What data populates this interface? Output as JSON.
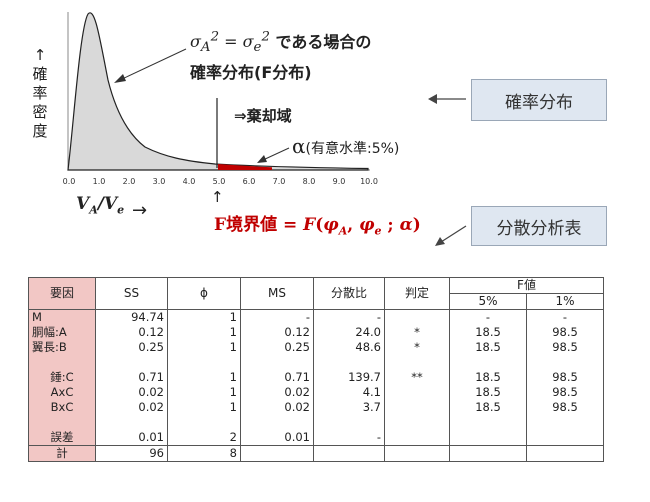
{
  "chart": {
    "y_label_chars": [
      "↑",
      "確",
      "率",
      "密",
      "度"
    ],
    "x_ticks": [
      "0.0",
      "1.0",
      "2.0",
      "3.0",
      "4.0",
      "5.0",
      "6.0",
      "7.0",
      "8.0",
      "9.0",
      "10.0"
    ],
    "x_axis_var": "V_A/V_e",
    "x_arrow": "→",
    "equation_line1_rest": "である場合の",
    "equation_line2": "確率分布(F分布)",
    "rejection_label": "⇒棄却域",
    "alpha_symbol": "α",
    "alpha_text": "(有意水準:5%)",
    "boundary_arrow": "↑",
    "f_boundary_prefix": "F境界値",
    "colors": {
      "curve_fill": "#d9d9d9",
      "curve_stroke": "#222222",
      "rejection_fill": "#c00000",
      "label_box_bg": "#dfe7f1",
      "factor_cell_bg": "#f2c7c5"
    }
  },
  "labels": {
    "probability": "確率分布",
    "anova": "分散分析表"
  },
  "table": {
    "headers": {
      "factor": "要因",
      "ss": "SS",
      "phi": "ϕ",
      "ms": "MS",
      "ratio": "分散比",
      "judge": "判定",
      "f_value": "F値",
      "f5": "5%",
      "f1": "1%"
    },
    "rows": [
      {
        "factor": "M",
        "ss": "94.74",
        "phi": "1",
        "ms": "-",
        "ratio": "-",
        "judge": "",
        "f5": "-",
        "f1": "-"
      },
      {
        "factor": "胴幅:A",
        "ss": "0.12",
        "phi": "1",
        "ms": "0.12",
        "ratio": "24.0",
        "judge": "*",
        "f5": "18.5",
        "f1": "98.5"
      },
      {
        "factor": "翼長:B",
        "ss": "0.25",
        "phi": "1",
        "ms": "0.25",
        "ratio": "48.6",
        "judge": "*",
        "f5": "18.5",
        "f1": "98.5"
      },
      {
        "factor": "",
        "ss": "",
        "phi": "",
        "ms": "",
        "ratio": "",
        "judge": "",
        "f5": "",
        "f1": ""
      },
      {
        "factor": "錘:C",
        "ss": "0.71",
        "phi": "1",
        "ms": "0.71",
        "ratio": "139.7",
        "judge": "**",
        "f5": "18.5",
        "f1": "98.5"
      },
      {
        "factor": "AxC",
        "ss": "0.02",
        "phi": "1",
        "ms": "0.02",
        "ratio": "4.1",
        "judge": "",
        "f5": "18.5",
        "f1": "98.5"
      },
      {
        "factor": "BxC",
        "ss": "0.02",
        "phi": "1",
        "ms": "0.02",
        "ratio": "3.7",
        "judge": "",
        "f5": "18.5",
        "f1": "98.5"
      },
      {
        "factor": "",
        "ss": "",
        "phi": "",
        "ms": "",
        "ratio": "",
        "judge": "",
        "f5": "",
        "f1": ""
      },
      {
        "factor": "誤差",
        "ss": "0.01",
        "phi": "2",
        "ms": "0.01",
        "ratio": "-",
        "judge": "",
        "f5": "",
        "f1": ""
      }
    ],
    "total": {
      "factor": "計",
      "ss": "96",
      "phi": "8"
    }
  }
}
